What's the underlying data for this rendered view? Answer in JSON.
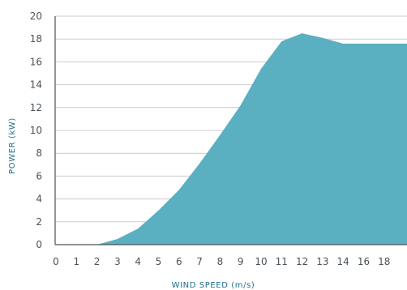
{
  "chart_data": {
    "type": "area",
    "title": "",
    "xlabel": "WIND SPEED (m/s)",
    "ylabel": "POWER (kW)",
    "ylim": [
      0,
      20
    ],
    "yticks": [
      0,
      2,
      4,
      6,
      8,
      10,
      12,
      14,
      16,
      18,
      20
    ],
    "xtick_labels": [
      "0",
      "1",
      "2",
      "3",
      "4",
      "5",
      "6",
      "7",
      "8",
      "9",
      "10",
      "11",
      "12",
      "13",
      "14",
      "16",
      "18"
    ],
    "grid": "horizontal",
    "fill_color": "#5aafc1",
    "series": [
      {
        "x": [
          "0",
          "1",
          "2",
          "3",
          "4",
          "5",
          "6",
          "7",
          "8",
          "9",
          "10",
          "11",
          "12",
          "13",
          "14",
          "16",
          "18"
        ],
        "values": [
          0,
          0,
          0,
          0.5,
          1.4,
          3.0,
          4.8,
          7.1,
          9.6,
          12.2,
          15.4,
          17.8,
          18.5,
          18.1,
          17.6,
          17.6,
          17.6
        ]
      }
    ]
  }
}
